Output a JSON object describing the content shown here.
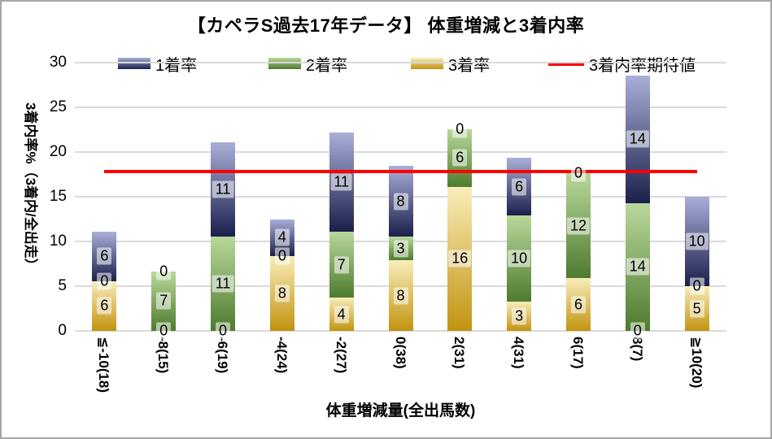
{
  "window": {
    "background": "#ffffff",
    "border_color": "#a6a6a6",
    "grid_color": "#d9d9d9"
  },
  "chart_data": {
    "type": "bar",
    "stacked": true,
    "title": "【カペラS過去17年データ】 体重増減と3着内率",
    "xlabel": "体重増減量(全出馬数)",
    "ylabel": "3着内率%（3着内/全出走）",
    "ylim": [
      0,
      30
    ],
    "yticks": [
      0,
      5,
      10,
      15,
      20,
      25,
      30
    ],
    "grid": true,
    "legend_position": "top",
    "categories": [
      "≦-10(18)",
      "-8(15)",
      "-6(19)",
      "-4(24)",
      "-2(27)",
      "0(38)",
      "2(31)",
      "4(31)",
      "6(17)",
      "8(7)",
      "≧10(20)"
    ],
    "series": [
      {
        "name": "1着率",
        "color_top": "#a9afd8",
        "color_bottom": "#1b1f4b",
        "values": [
          5.56,
          0,
          10.53,
          4.17,
          11.11,
          7.89,
          0,
          6.45,
          0,
          14.29,
          10
        ],
        "labels": [
          "6",
          "0",
          "11",
          "4",
          "11",
          "8",
          "0",
          "6",
          "0",
          "14",
          "10"
        ]
      },
      {
        "name": "2着率",
        "color_top": "#b9d89c",
        "color_bottom": "#4e7b2e",
        "values": [
          0,
          6.67,
          10.53,
          0,
          7.41,
          2.63,
          6.45,
          9.68,
          11.76,
          14.29,
          0
        ],
        "labels": [
          "0",
          "7",
          "11",
          "0",
          "7",
          "3",
          "6",
          "10",
          "12",
          "14",
          "0"
        ]
      },
      {
        "name": "3着率",
        "color_top": "#f9edbb",
        "color_bottom": "#c2930f",
        "values": [
          5.56,
          0,
          0,
          8.33,
          3.7,
          7.89,
          16.13,
          3.23,
          5.88,
          0,
          5
        ],
        "labels": [
          "6",
          "0",
          "0",
          "8",
          "4",
          "8",
          "16",
          "3",
          "6",
          "0",
          "5"
        ]
      }
    ],
    "stack_order_bottom_to_top": [
      "3着率",
      "2着率",
      "1着率"
    ],
    "expected_line": {
      "label": "3着内率期待値",
      "value": 17.8,
      "color": "#ff0000"
    }
  }
}
